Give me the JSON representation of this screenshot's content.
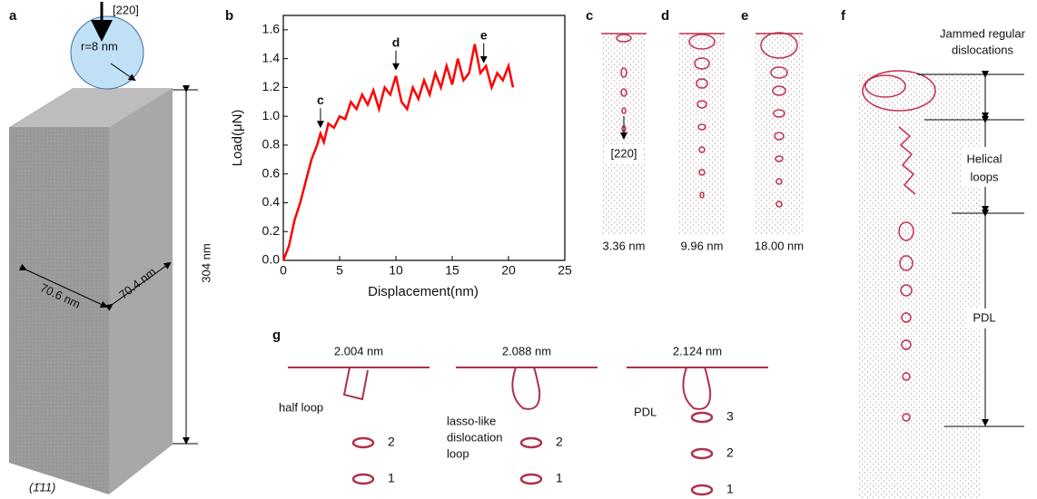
{
  "panels": {
    "a": {
      "label": "a",
      "direction": "[220]",
      "radius": "r=8 nm",
      "height": "304 nm",
      "width1": "70.6 nm",
      "width2": "70.4 nm",
      "plane": "(1̄11)"
    },
    "c": {
      "label": "c",
      "caption": "3.36 nm",
      "direction": "[220]"
    },
    "d": {
      "label": "d",
      "caption": "9.96 nm"
    },
    "e": {
      "label": "e",
      "caption": "18.00 nm"
    },
    "f": {
      "label": "f",
      "top": [
        "Jammed regular",
        "dislocations"
      ],
      "middle": [
        "Helical",
        "loops"
      ],
      "bottom": "PDL"
    },
    "g": {
      "label": "g",
      "times": [
        "2.004 nm",
        "2.088 nm",
        "2.124 nm"
      ],
      "notes": [
        [
          "half loop"
        ],
        [
          "lasso-like",
          "dislocation",
          "loop"
        ],
        [
          "PDL"
        ]
      ],
      "numbers": [
        [
          "2",
          "1"
        ],
        [
          "2",
          "1"
        ],
        [
          "3",
          "2",
          "1"
        ]
      ]
    }
  },
  "chart_data": {
    "type": "line",
    "label": "b",
    "x_label": "Displacement(nm)",
    "y_label": "Load(μN)",
    "xlim": [
      0,
      25
    ],
    "ylim": [
      0,
      1.7
    ],
    "xticks": [
      0,
      5,
      10,
      15,
      20,
      25
    ],
    "yticks": [
      {
        "value": 0,
        "label": "0.0"
      },
      0.2,
      0.4,
      0.6,
      0.8,
      {
        "value": 1,
        "label": "1.0"
      },
      1.2,
      1.4,
      1.6
    ],
    "series": [
      {
        "color": "#ff0000",
        "x": [
          0,
          0.5,
          1,
          1.5,
          2,
          2.5,
          3,
          3.3,
          3.6,
          4,
          4.5,
          5,
          5.5,
          6,
          6.5,
          7,
          7.5,
          8,
          8.5,
          9,
          9.5,
          10,
          10.5,
          11,
          11.5,
          12,
          12.5,
          13,
          13.5,
          14,
          14.5,
          15,
          15.5,
          16,
          16.5,
          17,
          17.5,
          18,
          18.5,
          19,
          19.5,
          20,
          20.4
        ],
        "values": [
          0,
          0.1,
          0.28,
          0.4,
          0.55,
          0.7,
          0.8,
          0.88,
          0.82,
          0.95,
          0.92,
          1.0,
          0.98,
          1.1,
          1.05,
          1.15,
          1.08,
          1.18,
          1.05,
          1.2,
          1.15,
          1.28,
          1.1,
          1.05,
          1.2,
          1.12,
          1.25,
          1.15,
          1.3,
          1.2,
          1.35,
          1.22,
          1.4,
          1.25,
          1.3,
          1.5,
          1.3,
          1.35,
          1.2,
          1.3,
          1.25,
          1.35,
          1.2
        ]
      }
    ],
    "annotations": [
      {
        "text": "c",
        "x": 3.3
      },
      {
        "text": "d",
        "x": 10
      },
      {
        "text": "e",
        "x": 17.8
      }
    ]
  }
}
